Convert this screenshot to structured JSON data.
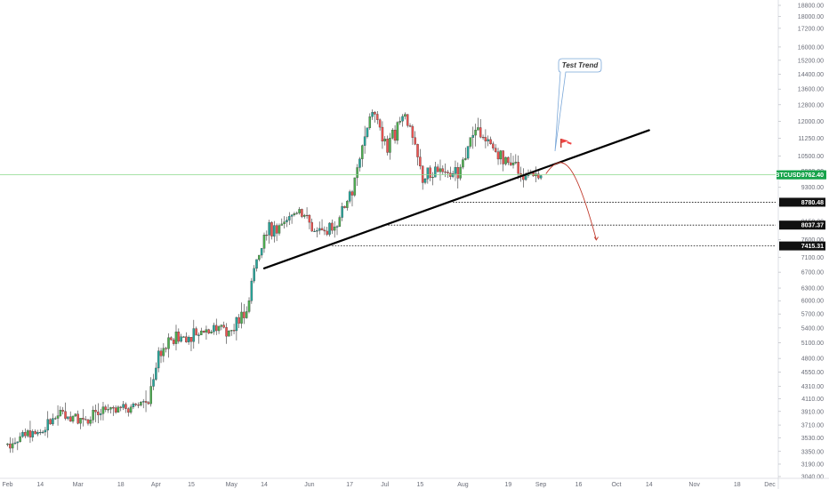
{
  "chart_data": {
    "type": "candlestick",
    "symbol": "BTCUSD",
    "last_price": "9762.40",
    "y_scale": "log",
    "ylim": [
      3040,
      18800
    ],
    "y_ticks": [
      "18800.00",
      "18000.00",
      "17200.00",
      "16000.00",
      "15200.00",
      "14400.00",
      "13600.00",
      "12800.00",
      "12000.00",
      "11250.00",
      "10500.00",
      "9900.00",
      "9300.00",
      "8700.00",
      "8150.00",
      "7600.00",
      "7100.00",
      "6700.00",
      "6300.00",
      "6000.00",
      "5700.00",
      "5400.00",
      "5100.00",
      "4800.00",
      "4550.00",
      "4310.00",
      "4110.00",
      "3910.00",
      "3710.00",
      "3530.00",
      "3350.00",
      "3190.00",
      "3040.00"
    ],
    "x_labels": [
      {
        "label": "Feb",
        "date": "2019-02-01"
      },
      {
        "label": "14",
        "date": "2019-02-14"
      },
      {
        "label": "Mar",
        "date": "2019-03-01"
      },
      {
        "label": "18",
        "date": "2019-03-18"
      },
      {
        "label": "Apr",
        "date": "2019-04-01"
      },
      {
        "label": "15",
        "date": "2019-04-15"
      },
      {
        "label": "May",
        "date": "2019-05-01"
      },
      {
        "label": "14",
        "date": "2019-05-14"
      },
      {
        "label": "Jun",
        "date": "2019-06-01"
      },
      {
        "label": "17",
        "date": "2019-06-17"
      },
      {
        "label": "Jul",
        "date": "2019-07-01"
      },
      {
        "label": "15",
        "date": "2019-07-15"
      },
      {
        "label": "Aug",
        "date": "2019-08-01"
      },
      {
        "label": "19",
        "date": "2019-08-19"
      },
      {
        "label": "Sep",
        "date": "2019-09-01"
      },
      {
        "label": "16",
        "date": "2019-09-16"
      },
      {
        "label": "Oct",
        "date": "2019-10-01"
      },
      {
        "label": "14",
        "date": "2019-10-14"
      },
      {
        "label": "Nov",
        "date": "2019-11-01"
      },
      {
        "label": "18",
        "date": "2019-11-18"
      },
      {
        "label": "Dec",
        "date": "2019-12-01"
      }
    ],
    "closes": [
      {
        "date": "2019-02-01",
        "close": 3440
      },
      {
        "date": "2019-02-08",
        "close": 3600
      },
      {
        "date": "2019-02-15",
        "close": 3620
      },
      {
        "date": "2019-02-22",
        "close": 3900
      },
      {
        "date": "2019-03-01",
        "close": 3820
      },
      {
        "date": "2019-03-08",
        "close": 3860
      },
      {
        "date": "2019-03-15",
        "close": 3920
      },
      {
        "date": "2019-03-22",
        "close": 3990
      },
      {
        "date": "2019-03-29",
        "close": 4100
      },
      {
        "date": "2019-04-02",
        "close": 4900
      },
      {
        "date": "2019-04-09",
        "close": 5200
      },
      {
        "date": "2019-04-16",
        "close": 5250
      },
      {
        "date": "2019-04-23",
        "close": 5400
      },
      {
        "date": "2019-04-30",
        "close": 5350
      },
      {
        "date": "2019-05-07",
        "close": 5800
      },
      {
        "date": "2019-05-11",
        "close": 7100
      },
      {
        "date": "2019-05-14",
        "close": 7900
      },
      {
        "date": "2019-05-21",
        "close": 7950
      },
      {
        "date": "2019-05-28",
        "close": 8600
      },
      {
        "date": "2019-06-04",
        "close": 7700
      },
      {
        "date": "2019-06-11",
        "close": 8000
      },
      {
        "date": "2019-06-18",
        "close": 9200
      },
      {
        "date": "2019-06-22",
        "close": 10800
      },
      {
        "date": "2019-06-26",
        "close": 12500
      },
      {
        "date": "2019-07-02",
        "close": 10800
      },
      {
        "date": "2019-07-09",
        "close": 12500
      },
      {
        "date": "2019-07-16",
        "close": 9600
      },
      {
        "date": "2019-07-23",
        "close": 10000
      },
      {
        "date": "2019-07-30",
        "close": 9800
      },
      {
        "date": "2019-08-06",
        "close": 11800
      },
      {
        "date": "2019-08-13",
        "close": 10800
      },
      {
        "date": "2019-08-20",
        "close": 10100
      },
      {
        "date": "2019-08-27",
        "close": 9700
      },
      {
        "date": "2019-09-01",
        "close": 9762
      }
    ],
    "trendline": {
      "from": {
        "date": "2019-05-14",
        "value": 6800
      },
      "to": {
        "date": "2019-10-14",
        "value": 11600
      }
    },
    "support_levels": [
      {
        "value": 8780.48,
        "label": "8780.48",
        "from_date": "2019-07-28"
      },
      {
        "value": 8037.37,
        "label": "8037.37",
        "from_date": "2019-06-30"
      },
      {
        "value": 7415.31,
        "label": "7415.31",
        "from_date": "2019-06-10"
      }
    ],
    "projection": [
      {
        "date": "2019-09-03",
        "value": 9800
      },
      {
        "date": "2019-09-10",
        "value": 10300
      },
      {
        "date": "2019-09-17",
        "value": 9500
      },
      {
        "date": "2019-09-23",
        "value": 7600
      }
    ],
    "annotations": [
      {
        "text": "Test Trend",
        "type": "callout"
      }
    ],
    "colors": {
      "up": "#26a69a",
      "up_alt": "#4caf50",
      "down": "#ef5350",
      "price_line": "#8bd88b",
      "price_tag": "#16a34a",
      "trendline": "#000000",
      "projection": "#c0392b",
      "callout_border": "#7aa7d8"
    },
    "grid": false
  }
}
